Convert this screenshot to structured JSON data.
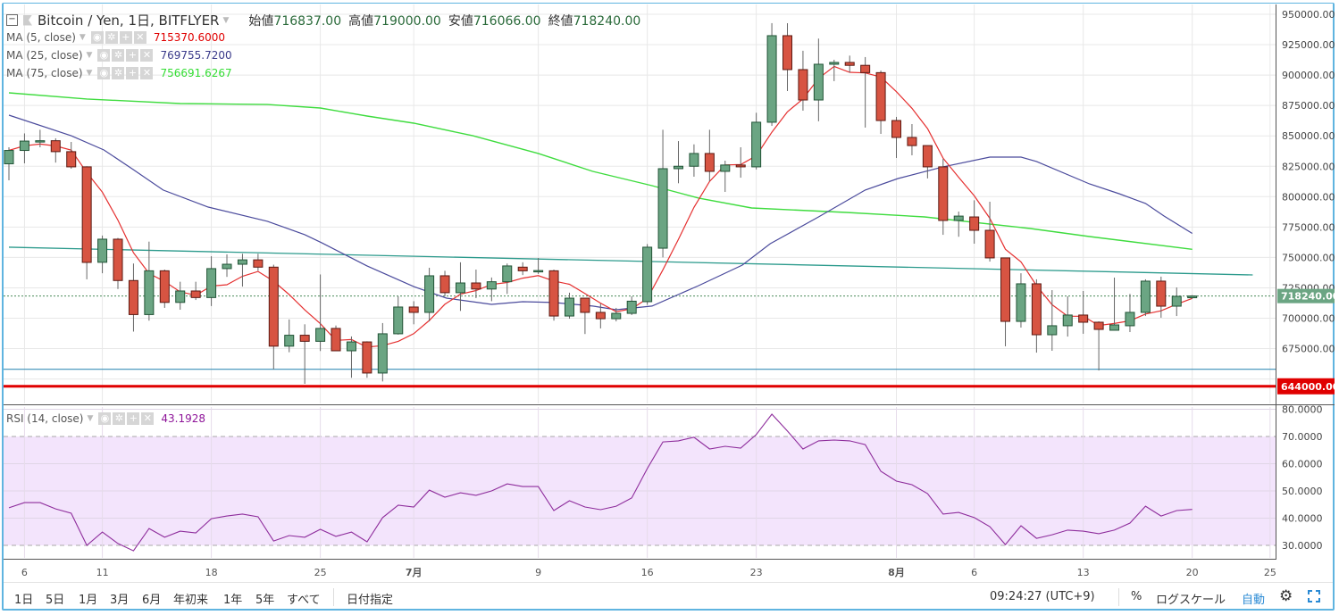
{
  "header": {
    "symbol": "Bitcoin / Yen, 1日, BITFLYER",
    "open_label": "始値",
    "open": "716837.00",
    "high_label": "高値",
    "high": "719000.00",
    "low_label": "安値",
    "low": "716066.00",
    "close_label": "終値",
    "close": "718240.00"
  },
  "indicators": [
    {
      "label": "MA (5, close)",
      "value": "715370.6000",
      "color": "#e00000"
    },
    {
      "label": "MA (25, close)",
      "value": "769755.7200",
      "color": "#3a3a8a"
    },
    {
      "label": "MA (75, close)",
      "value": "756691.6267",
      "color": "#33ee33"
    }
  ],
  "rsi_legend": {
    "label": "RSI (14, close)",
    "value": "43.1928",
    "color": "#8e1599"
  },
  "toolbar": {
    "ranges": [
      "1日",
      "5日",
      "1月",
      "3月",
      "6月",
      "年初来",
      "1年",
      "5年",
      "すべて"
    ],
    "date_pick": "日付指定",
    "clock": "09:24:27 (UTC+9)",
    "percent": "%",
    "log_scale": "ログスケール",
    "auto": "自動"
  },
  "chart_data": {
    "type": "candlestick",
    "title": "Bitcoin / Yen, 1日, BITFLYER",
    "x_start": "6月5日",
    "x_end": "8月20日",
    "time_ticks": [
      {
        "idx": 1,
        "label": "6",
        "bold": false
      },
      {
        "idx": 6,
        "label": "11",
        "bold": false
      },
      {
        "idx": 13,
        "label": "18",
        "bold": false
      },
      {
        "idx": 20,
        "label": "25",
        "bold": false
      },
      {
        "idx": 26,
        "label": "7月",
        "bold": true
      },
      {
        "idx": 34,
        "label": "9",
        "bold": false
      },
      {
        "idx": 41,
        "label": "16",
        "bold": false
      },
      {
        "idx": 48,
        "label": "23",
        "bold": false
      },
      {
        "idx": 57,
        "label": "8月",
        "bold": true
      },
      {
        "idx": 62,
        "label": "6",
        "bold": false
      },
      {
        "idx": 69,
        "label": "13",
        "bold": false
      },
      {
        "idx": 76,
        "label": "20",
        "bold": false
      },
      {
        "idx": 81,
        "label": "25",
        "bold": false
      }
    ],
    "price_ticks": [
      "950000.00",
      "925000.00",
      "900000.00",
      "875000.00",
      "850000.00",
      "825000.00",
      "800000.00",
      "775000.00",
      "750000.00",
      "725000.00",
      "700000.00",
      "675000.00"
    ],
    "price_tick_values": [
      950000,
      925000,
      900000,
      875000,
      850000,
      825000,
      800000,
      775000,
      750000,
      725000,
      700000,
      675000
    ],
    "ylim": [
      640000,
      955000
    ],
    "last_price": {
      "value": 718240,
      "label": "718240.00"
    },
    "support_line": {
      "value": 644000,
      "label": "644000.00"
    },
    "horizontal_line": 658000,
    "trend_line": [
      [
        0,
        758400
      ],
      [
        80,
        735600
      ]
    ],
    "ohlc": [
      [
        827000,
        840600,
        813400,
        838000
      ],
      [
        838000,
        852000,
        827400,
        845700
      ],
      [
        846000,
        855000,
        840600,
        846000
      ],
      [
        846000,
        848000,
        828000,
        837000
      ],
      [
        837000,
        845000,
        823000,
        824500
      ],
      [
        824500,
        825000,
        732000,
        745900
      ],
      [
        746000,
        768000,
        737000,
        765000
      ],
      [
        765000,
        766000,
        724000,
        731000
      ],
      [
        731000,
        745000,
        689000,
        703000
      ],
      [
        703000,
        763000,
        698000,
        739000
      ],
      [
        739000,
        740000,
        708500,
        713000
      ],
      [
        713000,
        730000,
        707000,
        722400
      ],
      [
        722400,
        730000,
        715000,
        717000
      ],
      [
        717000,
        751000,
        710000,
        740800
      ],
      [
        740800,
        752500,
        734000,
        744400
      ],
      [
        744400,
        753000,
        726000,
        748000
      ],
      [
        748000,
        753000,
        739000,
        742000
      ],
      [
        742000,
        744000,
        658000,
        677000
      ],
      [
        677000,
        699000,
        672000,
        686000
      ],
      [
        686000,
        695000,
        646000,
        681000
      ],
      [
        681000,
        736000,
        673000,
        691600
      ],
      [
        691600,
        694000,
        673000,
        673200
      ],
      [
        673200,
        685000,
        651000,
        680500
      ],
      [
        680500,
        681000,
        651000,
        654900
      ],
      [
        654900,
        696000,
        648000,
        687200
      ],
      [
        687200,
        718000,
        686500,
        709200
      ],
      [
        709200,
        714000,
        695000,
        704800
      ],
      [
        704800,
        741500,
        697400,
        734900
      ],
      [
        734900,
        739000,
        718000,
        721000
      ],
      [
        721000,
        746000,
        706000,
        729000
      ],
      [
        729000,
        740000,
        716500,
        724000
      ],
      [
        724000,
        733500,
        714000,
        730000
      ],
      [
        730000,
        745000,
        720000,
        743000
      ],
      [
        742000,
        746000,
        735500,
        739000
      ],
      [
        739000,
        749600,
        736400,
        739200
      ],
      [
        739000,
        740000,
        698000,
        701800
      ],
      [
        701800,
        721000,
        699600,
        716500
      ],
      [
        716500,
        716500,
        687000,
        704800
      ],
      [
        704800,
        712000,
        691600,
        699600
      ],
      [
        699600,
        708500,
        697400,
        704000
      ],
      [
        704000,
        718000,
        702600,
        714000
      ],
      [
        713600,
        761000,
        711000,
        758400
      ],
      [
        757600,
        855000,
        750000,
        823000
      ],
      [
        823000,
        845700,
        811000,
        825000
      ],
      [
        825000,
        843000,
        816400,
        835500
      ],
      [
        835500,
        855000,
        812700,
        820800
      ],
      [
        820800,
        829600,
        803900,
        826000
      ],
      [
        826000,
        840600,
        815600,
        824500
      ],
      [
        824500,
        869000,
        822300,
        861200
      ],
      [
        861200,
        942700,
        858200,
        932400
      ],
      [
        932400,
        942700,
        886900,
        904500
      ],
      [
        904500,
        920000,
        870700,
        879500
      ],
      [
        879500,
        930000,
        862000,
        908900
      ],
      [
        908900,
        912600,
        895000,
        910400
      ],
      [
        910400,
        916000,
        902000,
        908000
      ],
      [
        908000,
        914800,
        856800,
        902000
      ],
      [
        902000,
        903700,
        851600,
        862600
      ],
      [
        862600,
        865600,
        831800,
        848700
      ],
      [
        848700,
        859700,
        834000,
        842000
      ],
      [
        842000,
        842000,
        815000,
        824500
      ],
      [
        824500,
        831000,
        768600,
        780400
      ],
      [
        780400,
        787700,
        767000,
        784000
      ],
      [
        783300,
        797000,
        761300,
        772300
      ],
      [
        772300,
        795800,
        746600,
        749600
      ],
      [
        749600,
        749600,
        676900,
        697400
      ],
      [
        697400,
        737000,
        692300,
        728300
      ],
      [
        728300,
        732000,
        671700,
        686400
      ],
      [
        686400,
        723100,
        673200,
        693800
      ],
      [
        693800,
        718000,
        684900,
        702600
      ],
      [
        702600,
        722400,
        687200,
        696700
      ],
      [
        696700,
        697400,
        657000,
        690800
      ],
      [
        690100,
        733400,
        690000,
        694500
      ],
      [
        693800,
        720000,
        688600,
        704800
      ],
      [
        704800,
        732000,
        701800,
        730500
      ],
      [
        730500,
        734200,
        700400,
        709900
      ],
      [
        709900,
        725300,
        701800,
        718000
      ],
      [
        716837,
        719000,
        716066,
        718240
      ]
    ],
    "ma25": [
      [
        0,
        867000
      ],
      [
        4,
        850100
      ],
      [
        6.1,
        838400
      ],
      [
        8,
        822200
      ],
      [
        9.9,
        805400
      ],
      [
        12.8,
        791400
      ],
      [
        16.6,
        779700
      ],
      [
        19,
        768700
      ],
      [
        20.1,
        762000
      ],
      [
        23,
        743000
      ],
      [
        26,
        726000
      ],
      [
        28.1,
        716500
      ],
      [
        31,
        711400
      ],
      [
        33,
        713600
      ],
      [
        35,
        712900
      ],
      [
        37.5,
        710000
      ],
      [
        39,
        707000
      ],
      [
        41.3,
        710000
      ],
      [
        44.3,
        726800
      ],
      [
        47.1,
        743700
      ],
      [
        48.9,
        761300
      ],
      [
        52,
        783300
      ],
      [
        55,
        805400
      ],
      [
        57.1,
        814900
      ],
      [
        60,
        824500
      ],
      [
        63,
        832500
      ],
      [
        65,
        832500
      ],
      [
        66,
        828900
      ],
      [
        69.4,
        810500
      ],
      [
        71.3,
        802400
      ],
      [
        73,
        794400
      ],
      [
        74.2,
        784000
      ],
      [
        76,
        769756
      ]
    ],
    "ma75": [
      [
        0,
        885400
      ],
      [
        5,
        880300
      ],
      [
        11,
        876600
      ],
      [
        16.6,
        875800
      ],
      [
        20,
        872900
      ],
      [
        23,
        866300
      ],
      [
        26,
        860400
      ],
      [
        29.8,
        850100
      ],
      [
        34,
        835500
      ],
      [
        37.5,
        820800
      ],
      [
        41.3,
        809000
      ],
      [
        44.3,
        798800
      ],
      [
        47.7,
        790700
      ],
      [
        53.8,
        787000
      ],
      [
        58.8,
        783300
      ],
      [
        65.6,
        773800
      ],
      [
        69.4,
        767200
      ],
      [
        76,
        756692
      ]
    ],
    "rsi": {
      "ticks": [
        "80.0000",
        "70.0000",
        "60.0000",
        "50.0000",
        "40.0000",
        "30.0000"
      ],
      "tick_values": [
        80,
        70,
        60,
        50,
        40,
        30
      ],
      "band": [
        30,
        70
      ],
      "values": [
        43.8,
        45.7,
        45.7,
        43.4,
        41.8,
        30.0,
        34.9,
        30.7,
        28.0,
        36.2,
        33.0,
        35.2,
        34.6,
        39.8,
        40.8,
        41.5,
        40.5,
        31.6,
        33.6,
        33.0,
        35.9,
        33.3,
        34.9,
        31.3,
        40.2,
        44.8,
        44.1,
        50.3,
        47.7,
        49.3,
        48.4,
        50.0,
        52.6,
        51.6,
        51.6,
        42.8,
        46.4,
        44.1,
        43.1,
        44.4,
        47.4,
        58.2,
        68.0,
        68.4,
        69.7,
        65.4,
        66.4,
        65.7,
        70.7,
        78.2,
        72.0,
        65.4,
        68.4,
        68.7,
        68.4,
        67.0,
        57.2,
        53.6,
        52.3,
        49.0,
        41.5,
        42.1,
        40.2,
        36.9,
        30.3,
        37.2,
        32.6,
        33.9,
        35.6,
        35.2,
        34.3,
        35.6,
        38.2,
        44.4,
        40.8,
        42.8,
        43.2
      ]
    },
    "colors": {
      "up": "#6ba583",
      "up_border": "#225437",
      "down": "#d75442",
      "down_border": "#5b1a13",
      "ma5": "#e53030",
      "ma25": "#4a4a9c",
      "ma75": "#3fdc3f",
      "trend": "#2b9a8c",
      "hline": "#3a8fb7",
      "support": "#e00000",
      "rsi": "#8e2d9c",
      "rsi_band": "#f3e4fc",
      "last": "#6ba583"
    }
  }
}
